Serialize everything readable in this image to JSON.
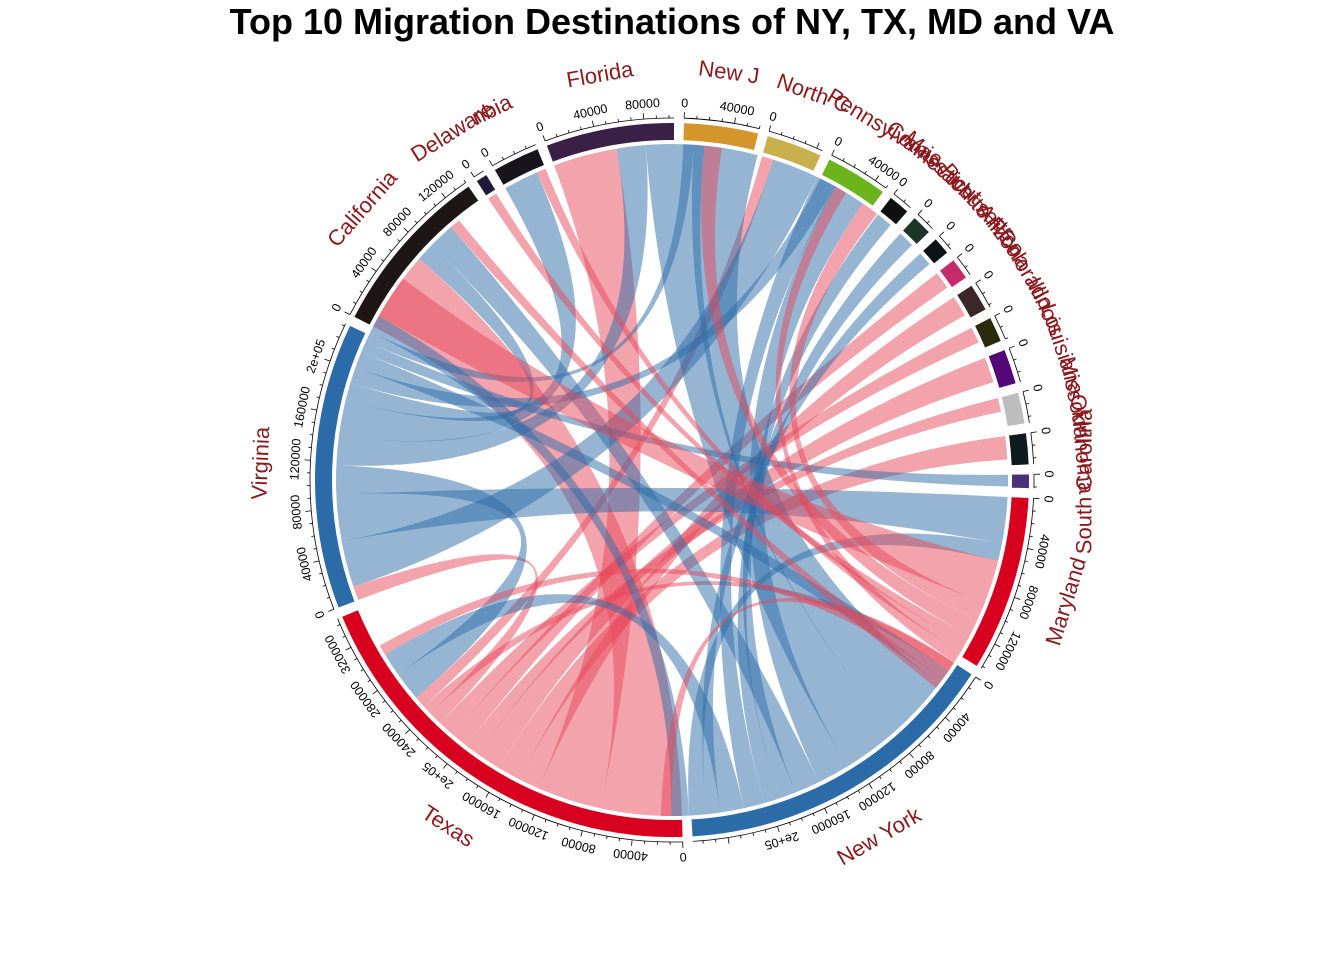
{
  "chart_data": {
    "type": "chord",
    "title": "Top 10 Migration Destinations of NY, TX, MD and VA",
    "sectors": [
      {
        "name": "Maryland",
        "total": 142000,
        "color": "#d7001e",
        "ticks": [
          "0",
          "40000",
          "80000",
          "120000"
        ]
      },
      {
        "name": "New York",
        "total": 268000,
        "color": "#2b6ba8",
        "ticks": [
          "0",
          "40000",
          "80000",
          "120000",
          "160000",
          "2e+05"
        ]
      },
      {
        "name": "Texas",
        "total": 345000,
        "color": "#d7001e",
        "ticks": [
          "0",
          "40000",
          "80000",
          "120000",
          "160000",
          "2e+05",
          "240000",
          "280000",
          "320000"
        ]
      },
      {
        "name": "Virginia",
        "total": 232000,
        "color": "#2b6ba8",
        "ticks": [
          "0",
          "40000",
          "80000",
          "120000",
          "160000",
          "2e+05"
        ]
      },
      {
        "name": "California",
        "total": 140000,
        "color": "#1e1614",
        "ticks": [
          "0",
          "40000",
          "80000",
          "120000"
        ]
      },
      {
        "name": "Delaware",
        "total": 9000,
        "color": "#22183a",
        "ticks": [
          "0"
        ]
      },
      {
        "name": "District of Columbia",
        "label": "nbia",
        "total": 38000,
        "color": "#17141b",
        "ticks": [
          "0"
        ]
      },
      {
        "name": "Florida",
        "total": 104000,
        "color": "#3a1f46",
        "ticks": [
          "0",
          "40000",
          "80000"
        ]
      },
      {
        "name": "New Jersey",
        "label": "New J",
        "total": 60000,
        "color": "#d4962a",
        "ticks": [
          "0",
          "40000"
        ]
      },
      {
        "name": "North Carolina",
        "label": "North C",
        "total": 45000,
        "color": "#c8b04c",
        "ticks": [
          "0"
        ]
      },
      {
        "name": "Pennsylvania",
        "label": "Pennsylvania",
        "total": 50000,
        "color": "#6bb41c",
        "ticks": [
          "0",
          "40000"
        ]
      },
      {
        "name": "Connecticut",
        "total": 17000,
        "color": "#0e0f0f",
        "ticks": [
          "0"
        ]
      },
      {
        "name": "Massachusetts",
        "total": 16000,
        "color": "#1b3526",
        "ticks": [
          "0"
        ]
      },
      {
        "name": "Puerto Rico",
        "total": 14000,
        "color": "#0c1418",
        "ticks": [
          "0"
        ]
      },
      {
        "name": "Arizona",
        "total": 17000,
        "color": "#c7296d",
        "ticks": [
          "0"
        ]
      },
      {
        "name": "Colorado",
        "total": 22000,
        "color": "#3a2828",
        "ticks": [
          "0"
        ]
      },
      {
        "name": "Illinois",
        "total": 20000,
        "color": "#2a2a0c",
        "ticks": [
          "0"
        ]
      },
      {
        "name": "Louisiana",
        "total": 28000,
        "color": "#540878",
        "ticks": [
          "0"
        ]
      },
      {
        "name": "Missouri",
        "total": 25000,
        "color": "#bdbdbd",
        "ticks": [
          "0"
        ]
      },
      {
        "name": "Oklahoma",
        "total": 25000,
        "color": "#0e1a1e",
        "ticks": [
          "0"
        ]
      },
      {
        "name": "South Carolina",
        "total": 11000,
        "color": "#4a2f7a",
        "ticks": [
          "0"
        ]
      }
    ],
    "flows": [
      {
        "from": "Texas",
        "to": "California",
        "value": 70000,
        "color": "#e8485a"
      },
      {
        "from": "Texas",
        "to": "Florida",
        "value": 55000,
        "color": "#e8485a"
      },
      {
        "from": "Texas",
        "to": "Colorado",
        "value": 18000,
        "color": "#e8485a"
      },
      {
        "from": "Texas",
        "to": "Oklahoma",
        "value": 20000,
        "color": "#e8485a"
      },
      {
        "from": "Texas",
        "to": "Louisiana",
        "value": 22000,
        "color": "#e8485a"
      },
      {
        "from": "Texas",
        "to": "Missouri",
        "value": 12000,
        "color": "#e8485a"
      },
      {
        "from": "Texas",
        "to": "Arizona",
        "value": 15000,
        "color": "#e8485a"
      },
      {
        "from": "Texas",
        "to": "Illinois",
        "value": 14000,
        "color": "#e8485a"
      },
      {
        "from": "Texas",
        "to": "Virginia",
        "value": 12000,
        "color": "#e8485a"
      },
      {
        "from": "Texas",
        "to": "New York",
        "value": 8000,
        "color": "#e8485a"
      },
      {
        "from": "Texas",
        "to": "North Carolina",
        "value": 10000,
        "color": "#e8485a"
      },
      {
        "from": "Virginia",
        "to": "North Carolina",
        "value": 40000,
        "color": "#2b6ba8"
      },
      {
        "from": "Virginia",
        "to": "Maryland",
        "value": 40000,
        "color": "#2b6ba8"
      },
      {
        "from": "Virginia",
        "to": "Texas",
        "value": 25000,
        "color": "#2b6ba8"
      },
      {
        "from": "Virginia",
        "to": "Florida",
        "value": 25000,
        "color": "#2b6ba8"
      },
      {
        "from": "Virginia",
        "to": "District of Columbia",
        "value": 30000,
        "color": "#2b6ba8"
      },
      {
        "from": "Virginia",
        "to": "California",
        "value": 16000,
        "color": "#2b6ba8"
      },
      {
        "from": "Virginia",
        "to": "Pennsylvania",
        "value": 14000,
        "color": "#2b6ba8"
      },
      {
        "from": "Virginia",
        "to": "New York",
        "value": 14000,
        "color": "#2b6ba8"
      },
      {
        "from": "Virginia",
        "to": "South Carolina",
        "value": 10000,
        "color": "#2b6ba8"
      },
      {
        "from": "Virginia",
        "to": "New Jersey",
        "value": 9000,
        "color": "#2b6ba8"
      },
      {
        "from": "New York",
        "to": "New Jersey",
        "value": 55000,
        "color": "#2b6ba8"
      },
      {
        "from": "New York",
        "to": "Florida",
        "value": 50000,
        "color": "#2b6ba8"
      },
      {
        "from": "New York",
        "to": "Pennsylvania",
        "value": 28000,
        "color": "#2b6ba8"
      },
      {
        "from": "New York",
        "to": "California",
        "value": 22000,
        "color": "#2b6ba8"
      },
      {
        "from": "New York",
        "to": "Connecticut",
        "value": 14000,
        "color": "#2b6ba8"
      },
      {
        "from": "New York",
        "to": "Massachusetts",
        "value": 14000,
        "color": "#2b6ba8"
      },
      {
        "from": "New York",
        "to": "North Carolina",
        "value": 18000,
        "color": "#2b6ba8"
      },
      {
        "from": "New York",
        "to": "Texas",
        "value": 20000,
        "color": "#2b6ba8"
      },
      {
        "from": "New York",
        "to": "Puerto Rico",
        "value": 12000,
        "color": "#2b6ba8"
      },
      {
        "from": "New York",
        "to": "Maryland",
        "value": 15000,
        "color": "#2b6ba8"
      },
      {
        "from": "New York",
        "to": "Virginia",
        "value": 15000,
        "color": "#2b6ba8"
      },
      {
        "from": "Maryland",
        "to": "Virginia",
        "value": 38000,
        "color": "#e8485a"
      },
      {
        "from": "Maryland",
        "to": "Pennsylvania",
        "value": 15000,
        "color": "#e8485a"
      },
      {
        "from": "Maryland",
        "to": "Florida",
        "value": 15000,
        "color": "#e8485a"
      },
      {
        "from": "Maryland",
        "to": "Delaware",
        "value": 8000,
        "color": "#e8485a"
      },
      {
        "from": "Maryland",
        "to": "District of Columbia",
        "value": 8000,
        "color": "#e8485a"
      },
      {
        "from": "Maryland",
        "to": "North Carolina",
        "value": 10000,
        "color": "#e8485a"
      },
      {
        "from": "Maryland",
        "to": "New York",
        "value": 9000,
        "color": "#e8485a"
      },
      {
        "from": "Maryland",
        "to": "Texas",
        "value": 9000,
        "color": "#e8485a"
      },
      {
        "from": "Maryland",
        "to": "California",
        "value": 9000,
        "color": "#e8485a"
      }
    ]
  }
}
